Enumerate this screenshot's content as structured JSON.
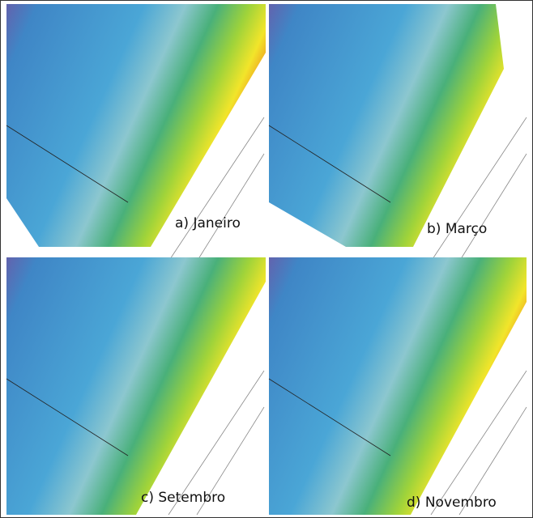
{
  "panels": [
    {
      "label": "a) Janeiro"
    },
    {
      "label": "b) Março"
    },
    {
      "label": "c) Setembro"
    },
    {
      "label": "d) Novembro"
    }
  ]
}
